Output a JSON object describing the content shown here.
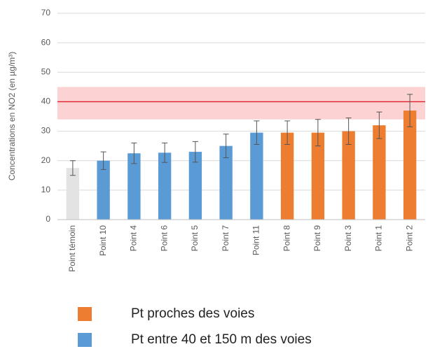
{
  "chart_data": {
    "type": "bar",
    "y_axis_label": "Concentrations en NO2 (en µg/m³)",
    "categories": [
      "Point témoin",
      "Point 10",
      "Point 4",
      "Point 6",
      "Point 5",
      "Point 7",
      "Point 11",
      "Point 8",
      "Point 9",
      "Point 3",
      "Point 1",
      "Point 2"
    ],
    "values": [
      17.5,
      20,
      22.5,
      22.7,
      23,
      25,
      29.5,
      29.5,
      29.5,
      30,
      32,
      37
    ],
    "errors": [
      2.5,
      3,
      3.5,
      3.3,
      3.5,
      4,
      4,
      4,
      4.5,
      4.5,
      4.5,
      5.5
    ],
    "colors": [
      "#e3e3e3",
      "#5b9bd5",
      "#5b9bd5",
      "#5b9bd5",
      "#5b9bd5",
      "#5b9bd5",
      "#5b9bd5",
      "#ed7d31",
      "#ed7d31",
      "#ed7d31",
      "#ed7d31",
      "#ed7d31"
    ],
    "legend": [
      {
        "name": "Pt proches des voies",
        "color": "#ed7d31"
      },
      {
        "name": "Pt entre 40 et 150 m des voies",
        "color": "#5b9bd5"
      }
    ],
    "reference_line": 40,
    "reference_line_color": "#e0202a",
    "reference_band": [
      34,
      45
    ],
    "reference_band_color": "#fbcaca",
    "ylim": [
      0,
      70
    ],
    "yticks": [
      0,
      10,
      20,
      30,
      40,
      50,
      60,
      70
    ],
    "grid": true
  }
}
